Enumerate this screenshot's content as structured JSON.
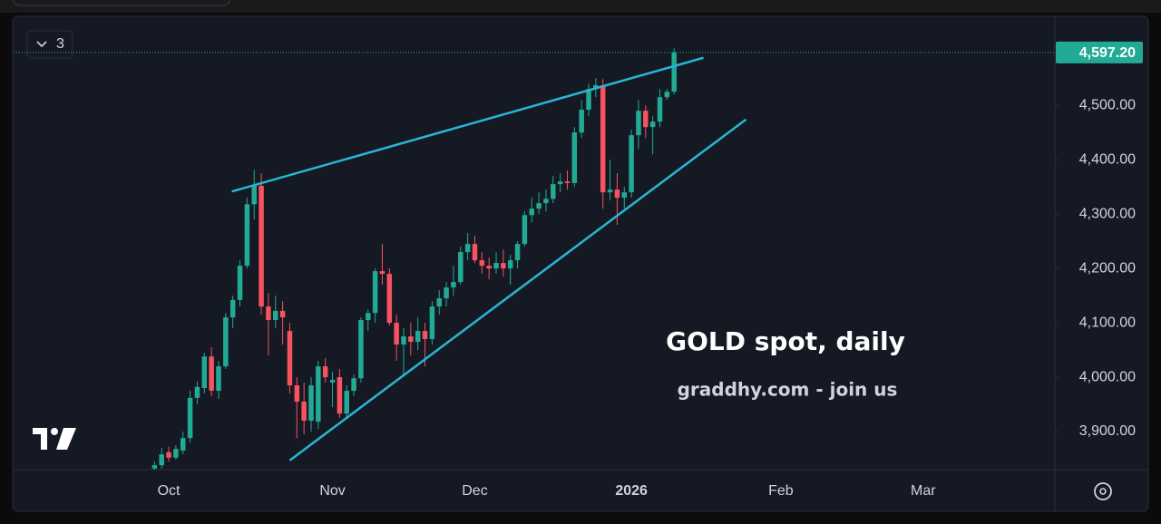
{
  "chart_data": {
    "type": "candlestick",
    "title": "GOLD spot, daily",
    "subtitle": "graddhy.com - join us",
    "indicator_count": "3",
    "x": [
      -2,
      -1,
      0,
      1,
      2,
      3,
      4,
      5,
      6,
      7,
      8,
      9,
      10,
      11,
      12,
      13,
      14,
      15,
      16,
      17,
      18,
      19,
      20,
      21,
      22,
      23,
      24,
      25,
      26,
      27,
      28,
      29,
      30,
      31,
      32,
      33,
      34,
      35,
      36,
      37,
      38,
      39,
      40,
      41,
      42,
      43,
      44,
      45,
      46,
      47,
      48,
      49,
      50,
      51,
      52,
      53,
      54,
      55,
      56,
      57,
      58,
      59,
      60,
      61,
      62,
      63,
      64,
      65,
      66,
      67,
      68,
      69,
      70,
      71
    ],
    "open": [
      3832,
      3838,
      3862,
      3852,
      3865,
      3888,
      3962,
      3980,
      4038,
      3975,
      4020,
      4110,
      4142,
      4205,
      4318,
      4352,
      4130,
      4105,
      4122,
      4085,
      3985,
      3955,
      3920,
      3918,
      4020,
      3990,
      4000,
      3933,
      3975,
      3998,
      4105,
      4118,
      4195,
      4190,
      4100,
      4060,
      4075,
      4065,
      4085,
      4070,
      4130,
      4145,
      4165,
      4175,
      4230,
      4245,
      4215,
      4205,
      4200,
      4210,
      4200,
      4215,
      4245,
      4298,
      4310,
      4320,
      4328,
      4355,
      4360,
      4357,
      4450,
      4492,
      4530,
      4537,
      4340,
      4345,
      4330,
      4340,
      4445,
      4490,
      4460,
      4470,
      4515,
      4525
    ],
    "high": [
      3845,
      3870,
      3872,
      3875,
      3900,
      3975,
      3992,
      4045,
      4055,
      4030,
      4118,
      4150,
      4215,
      4330,
      4381,
      4375,
      4155,
      4150,
      4140,
      4100,
      4000,
      3990,
      4000,
      4030,
      4035,
      4010,
      4015,
      3985,
      4005,
      4110,
      4125,
      4200,
      4245,
      4200,
      4115,
      4090,
      4100,
      4110,
      4100,
      4140,
      4160,
      4175,
      4205,
      4240,
      4265,
      4260,
      4230,
      4220,
      4230,
      4235,
      4225,
      4250,
      4305,
      4330,
      4340,
      4345,
      4370,
      4375,
      4380,
      4460,
      4510,
      4540,
      4550,
      4548,
      4400,
      4375,
      4350,
      4455,
      4510,
      4500,
      4480,
      4530,
      4530,
      4605
    ],
    "low": [
      3828,
      3832,
      3845,
      3848,
      3858,
      3880,
      3950,
      3970,
      3965,
      3960,
      4015,
      4090,
      4130,
      4200,
      4290,
      4115,
      4040,
      4090,
      4060,
      3970,
      3888,
      3895,
      3900,
      3905,
      3990,
      3945,
      3925,
      3925,
      3965,
      3990,
      4085,
      4100,
      4170,
      4095,
      4030,
      4005,
      4040,
      4050,
      4020,
      4060,
      4115,
      4130,
      4150,
      4170,
      4215,
      4210,
      4190,
      4180,
      4190,
      4185,
      4170,
      4200,
      4240,
      4285,
      4300,
      4305,
      4320,
      4340,
      4345,
      4350,
      4440,
      4480,
      4515,
      4310,
      4325,
      4280,
      4310,
      4330,
      4420,
      4440,
      4410,
      4460,
      4510,
      4520
    ],
    "close": [
      3838,
      3858,
      3852,
      3868,
      3888,
      3962,
      3982,
      4038,
      3975,
      4020,
      4110,
      4142,
      4205,
      4318,
      4352,
      4130,
      4105,
      4122,
      4110,
      3985,
      3955,
      3920,
      3985,
      4020,
      4000,
      3995,
      3933,
      3975,
      3998,
      4105,
      4118,
      4195,
      4190,
      4100,
      4060,
      4075,
      4065,
      4085,
      4070,
      4130,
      4145,
      4165,
      4175,
      4230,
      4245,
      4215,
      4205,
      4200,
      4210,
      4200,
      4215,
      4245,
      4298,
      4310,
      4320,
      4328,
      4355,
      4360,
      4357,
      4450,
      4492,
      4530,
      4537,
      4340,
      4345,
      4330,
      4340,
      4445,
      4490,
      4460,
      4470,
      4515,
      4525,
      4597.2
    ],
    "up_color": "#22ab94",
    "down_color": "#f7525f",
    "last_price": {
      "value": 4597.2,
      "label": "4,597.20"
    },
    "trendlines": [
      {
        "x": [
          9,
          75
        ],
        "y": [
          4342,
          4587
        ],
        "color": "#29b6d6"
      },
      {
        "x": [
          17.1,
          81
        ],
        "y": [
          3848,
          4473
        ],
        "color": "#29b6d6"
      }
    ],
    "xlim": [
      -21.8,
      124.5
    ],
    "ylim": [
      3830,
      4657
    ],
    "xticks": [
      {
        "value": 0,
        "label": "Oct"
      },
      {
        "value": 23,
        "label": "Nov"
      },
      {
        "value": 43,
        "label": "Dec"
      },
      {
        "value": 65,
        "label": "2026"
      },
      {
        "value": 86,
        "label": "Feb"
      },
      {
        "value": 106,
        "label": "Mar"
      }
    ],
    "yticks": [
      {
        "value": 3900,
        "label": "3,900.00"
      },
      {
        "value": 4000,
        "label": "4,000.00"
      },
      {
        "value": 4100,
        "label": "4,100.00"
      },
      {
        "value": 4200,
        "label": "4,200.00"
      },
      {
        "value": 4300,
        "label": "4,300.00"
      },
      {
        "value": 4400,
        "label": "4,400.00"
      },
      {
        "value": 4500,
        "label": "4,500.00"
      }
    ],
    "grid": false
  }
}
